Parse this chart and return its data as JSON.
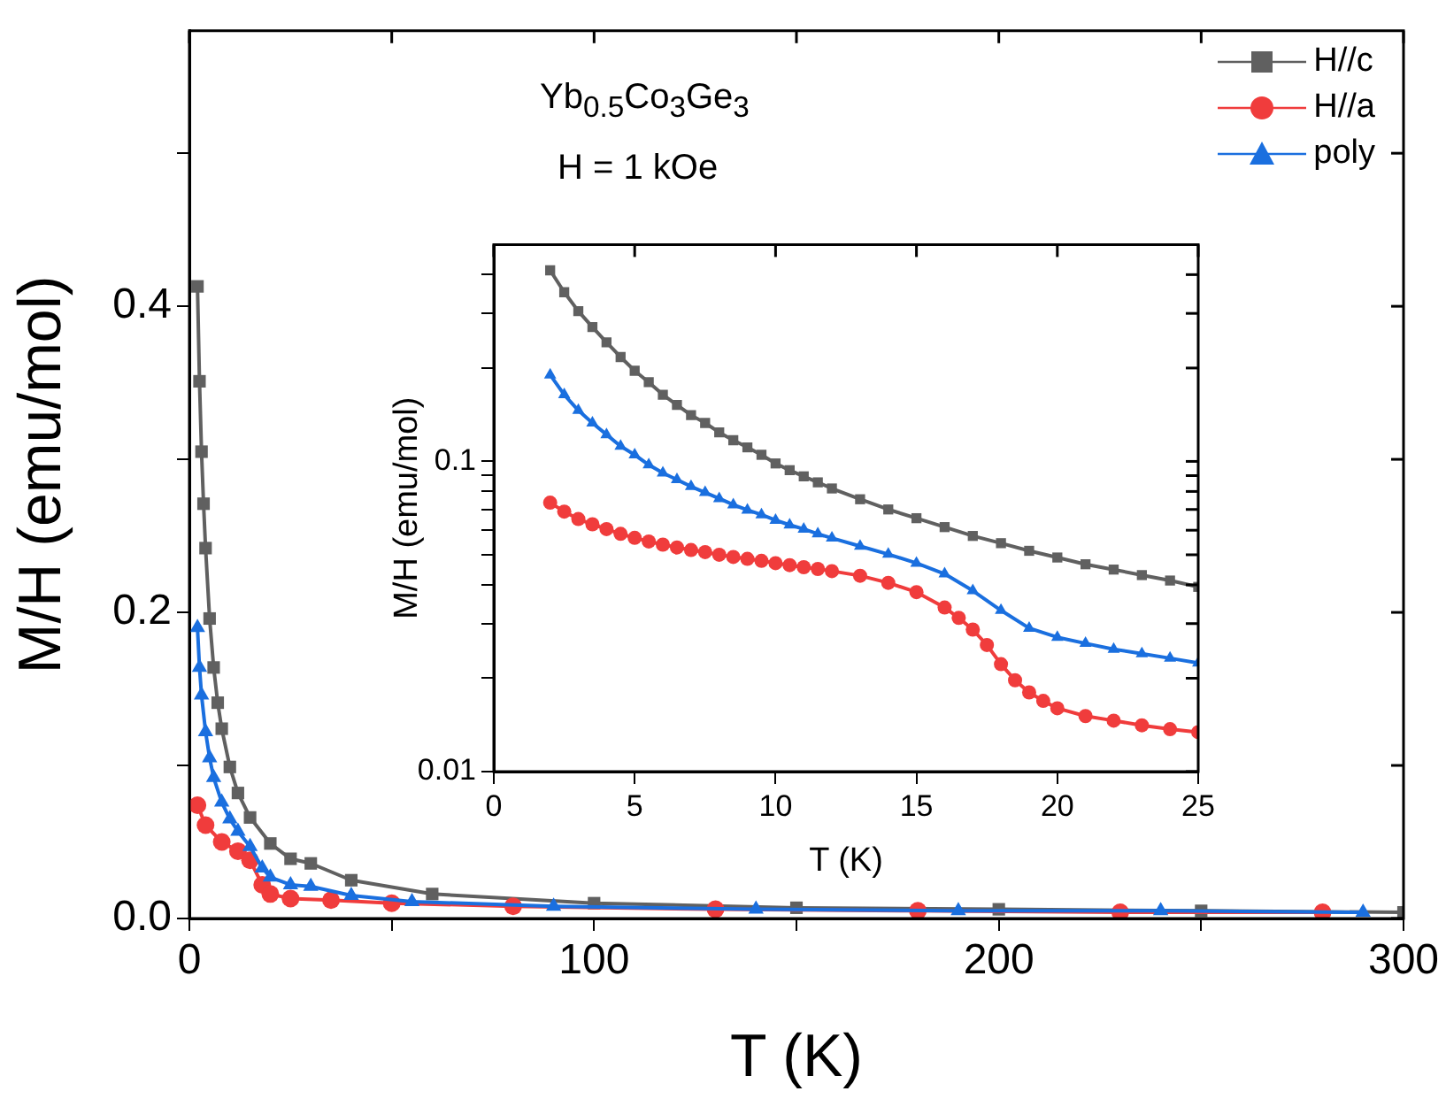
{
  "chart_data": [
    {
      "type": "line",
      "xlabel": "T (K)",
      "ylabel": "M/H (emu/mol)",
      "annotations": [
        "Yb$_{0.5}$Co$_{3}$Ge$_{3}$",
        "H = 1 kOe"
      ],
      "xlim": [
        0,
        300
      ],
      "xticks": [
        0,
        {
          "value": 50,
          "label": null
        },
        100,
        {
          "value": 150,
          "label": null
        },
        200,
        {
          "value": 250,
          "label": null
        },
        300
      ],
      "ylim": [
        0,
        0.58
      ],
      "yticks": [
        {
          "value": 0,
          "label": "0.0"
        },
        {
          "value": 0.1,
          "label": null
        },
        0.2,
        {
          "value": 0.3,
          "label": null
        },
        0.4,
        {
          "value": 0.5,
          "label": null
        }
      ],
      "legend": "top right",
      "line_style": "solid",
      "grid": false,
      "series": [
        {
          "name": "H//c",
          "color": "#606060",
          "marker": "square",
          "x": [
            2,
            2.5,
            3,
            3.5,
            4,
            5,
            6,
            7,
            8,
            10,
            12,
            15,
            20,
            25,
            30,
            40,
            60,
            100,
            150,
            200,
            250,
            300
          ],
          "values": [
            0.413,
            0.351,
            0.305,
            0.271,
            0.242,
            0.196,
            0.164,
            0.141,
            0.124,
            0.099,
            0.082,
            0.066,
            0.049,
            0.039,
            0.036,
            0.025,
            0.016,
            0.01,
            0.007,
            0.006,
            0.005,
            0.004
          ]
        },
        {
          "name": "H//a",
          "color": "#f03c3c",
          "marker": "circle",
          "x": [
            2,
            4,
            8,
            12,
            15,
            18,
            20,
            25,
            35,
            50,
            80,
            130,
            180,
            230,
            280
          ],
          "values": [
            0.074,
            0.061,
            0.05,
            0.044,
            0.038,
            0.022,
            0.016,
            0.013,
            0.012,
            0.01,
            0.008,
            0.006,
            0.005,
            0.004,
            0.004
          ]
        },
        {
          "name": "poly",
          "color": "#1a6fdf",
          "marker": "triangle",
          "x": [
            2,
            2.5,
            3,
            4,
            5,
            6,
            8,
            10,
            12,
            15,
            18,
            20,
            25,
            30,
            40,
            55,
            90,
            140,
            190,
            240,
            290
          ],
          "values": [
            0.19,
            0.164,
            0.146,
            0.122,
            0.105,
            0.092,
            0.076,
            0.065,
            0.057,
            0.047,
            0.033,
            0.027,
            0.022,
            0.021,
            0.015,
            0.011,
            0.008,
            0.006,
            0.005,
            0.005,
            0.004
          ]
        }
      ]
    },
    {
      "type": "line",
      "xlabel": "T (K)",
      "ylabel": "M/H (emu/mol)",
      "log": "y",
      "xlim": [
        0,
        25
      ],
      "xticks": [
        0,
        5,
        10,
        15,
        20,
        25
      ],
      "ylim": [
        0.01,
        0.5
      ],
      "yticks": [
        0.01,
        {
          "value": 0.02,
          "label": null
        },
        {
          "value": 0.03,
          "label": null
        },
        {
          "value": 0.04,
          "label": null
        },
        {
          "value": 0.05,
          "label": null
        },
        {
          "value": 0.06,
          "label": null
        },
        {
          "value": 0.07,
          "label": null
        },
        {
          "value": 0.08,
          "label": null
        },
        {
          "value": 0.09,
          "label": null
        },
        0.1,
        {
          "value": 0.2,
          "label": null
        },
        {
          "value": 0.3,
          "label": null
        },
        {
          "value": 0.4,
          "label": null
        }
      ],
      "line_style": "solid",
      "grid": false,
      "series": [
        {
          "color": "#606060",
          "marker": "square",
          "x": [
            2,
            2.5,
            3,
            3.5,
            4,
            4.5,
            5,
            5.5,
            6,
            6.5,
            7,
            7.5,
            8,
            8.5,
            9,
            9.5,
            10,
            10.5,
            11,
            11.5,
            12,
            13,
            14,
            15,
            16,
            17,
            18,
            19,
            20,
            21,
            22,
            23,
            24,
            25
          ],
          "values": [
            0.413,
            0.351,
            0.305,
            0.271,
            0.242,
            0.217,
            0.196,
            0.18,
            0.164,
            0.152,
            0.141,
            0.133,
            0.124,
            0.117,
            0.111,
            0.105,
            0.0985,
            0.0937,
            0.0895,
            0.0856,
            0.0818,
            0.0755,
            0.07,
            0.0656,
            0.0614,
            0.0575,
            0.0545,
            0.0515,
            0.049,
            0.0466,
            0.0448,
            0.043,
            0.0413,
            0.0394
          ]
        },
        {
          "color": "#f03c3c",
          "marker": "circle",
          "x": [
            2,
            2.5,
            3,
            3.5,
            4,
            4.5,
            5,
            5.5,
            6,
            6.5,
            7,
            7.5,
            8,
            8.5,
            9,
            9.5,
            10,
            10.5,
            11,
            11.5,
            12,
            13,
            14,
            15,
            16,
            16.5,
            17,
            17.5,
            18,
            18.5,
            19,
            19.5,
            20,
            21,
            22,
            23,
            24,
            25
          ],
          "values": [
            0.0736,
            0.0689,
            0.0652,
            0.0627,
            0.0605,
            0.0584,
            0.0567,
            0.0552,
            0.0539,
            0.0528,
            0.0518,
            0.051,
            0.05,
            0.0492,
            0.0485,
            0.0478,
            0.047,
            0.0463,
            0.0456,
            0.045,
            0.0443,
            0.0428,
            0.0406,
            0.0379,
            0.0338,
            0.0313,
            0.0287,
            0.0256,
            0.0222,
            0.0197,
            0.018,
            0.0169,
            0.016,
            0.0151,
            0.0146,
            0.0141,
            0.0137,
            0.0134
          ]
        },
        {
          "color": "#1a6fdf",
          "marker": "triangle",
          "x": [
            2,
            2.5,
            3,
            3.5,
            4,
            4.5,
            5,
            5.5,
            6,
            6.5,
            7,
            7.5,
            8,
            8.5,
            9,
            9.5,
            10,
            10.5,
            11,
            11.5,
            12,
            13,
            14,
            15,
            16,
            17,
            18,
            19,
            20,
            21,
            22,
            23,
            24,
            25
          ],
          "values": [
            0.19,
            0.164,
            0.146,
            0.133,
            0.122,
            0.112,
            0.105,
            0.0975,
            0.0918,
            0.0873,
            0.083,
            0.0794,
            0.0759,
            0.0725,
            0.0697,
            0.0673,
            0.0646,
            0.0624,
            0.0605,
            0.0584,
            0.0566,
            0.0533,
            0.0502,
            0.047,
            0.0434,
            0.0383,
            0.0331,
            0.029,
            0.0271,
            0.0259,
            0.0248,
            0.024,
            0.0232,
            0.0224
          ]
        }
      ]
    }
  ]
}
